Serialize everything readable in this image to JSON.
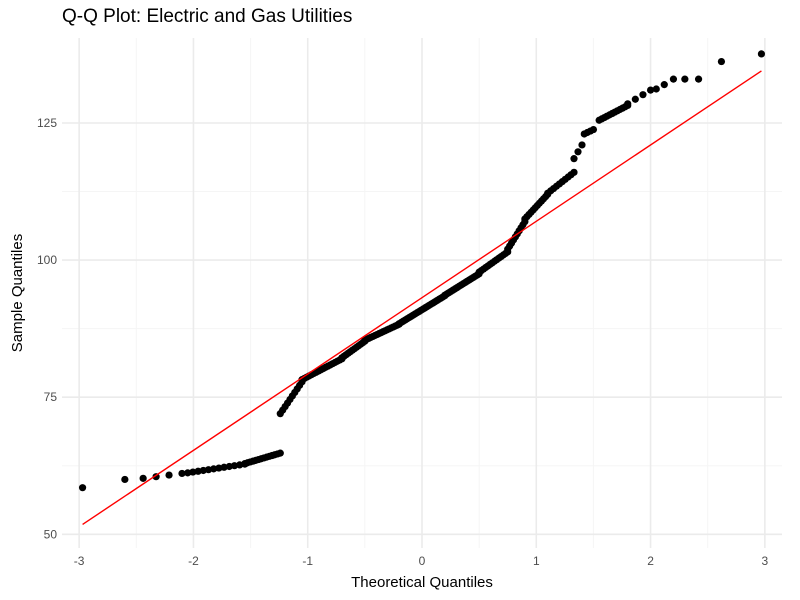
{
  "chart_data": {
    "type": "scatter",
    "title": "Q-Q Plot: Electric and Gas Utilities",
    "xlabel": "Theoretical Quantiles",
    "ylabel": "Sample Quantiles",
    "xlim": [
      -3.15,
      3.15
    ],
    "ylim": [
      47.5,
      140.5
    ],
    "x_ticks": [
      -3,
      -2,
      -1,
      0,
      1,
      2,
      3
    ],
    "y_ticks": [
      50,
      75,
      100,
      125
    ],
    "grid": true,
    "colors": {
      "points": "#000000",
      "reference_line": "#ff0000",
      "grid_major": "#ebebeb",
      "grid_minor": "#f5f5f5"
    },
    "reference_line": {
      "x": [
        -2.97,
        2.97
      ],
      "y": [
        51.8,
        134.5
      ]
    },
    "segments": [
      {
        "x0": -2.97,
        "x1": -2.6,
        "y0": 58.5,
        "y1": 60.0,
        "n": 2
      },
      {
        "x0": -2.44,
        "x1": -2.1,
        "y0": 60.2,
        "y1": 61.1,
        "n": 4
      },
      {
        "x0": -2.05,
        "x1": -1.55,
        "y0": 61.2,
        "y1": 62.8,
        "n": 12
      },
      {
        "x0": -1.55,
        "x1": -1.24,
        "y0": 62.9,
        "y1": 64.8,
        "n": 14
      },
      {
        "x0": -1.24,
        "x1": -1.05,
        "y0": 72.0,
        "y1": 77.8,
        "n": 10
      },
      {
        "x0": -1.05,
        "x1": -0.7,
        "y0": 78.2,
        "y1": 82.0,
        "n": 18
      },
      {
        "x0": -0.7,
        "x1": -0.5,
        "y0": 82.2,
        "y1": 85.2,
        "n": 12
      },
      {
        "x0": -0.5,
        "x1": -0.2,
        "y0": 85.4,
        "y1": 88.3,
        "n": 18
      },
      {
        "x0": -0.2,
        "x1": 0.2,
        "y0": 88.4,
        "y1": 93.5,
        "n": 24
      },
      {
        "x0": 0.2,
        "x1": 0.5,
        "y0": 93.6,
        "y1": 97.5,
        "n": 18
      },
      {
        "x0": 0.5,
        "x1": 0.75,
        "y0": 97.8,
        "y1": 101.5,
        "n": 14
      },
      {
        "x0": 0.75,
        "x1": 0.9,
        "y0": 102.0,
        "y1": 107.0,
        "n": 10
      },
      {
        "x0": 0.9,
        "x1": 1.1,
        "y0": 107.5,
        "y1": 112.0,
        "n": 12
      },
      {
        "x0": 1.1,
        "x1": 1.33,
        "y0": 112.2,
        "y1": 116.0,
        "n": 10
      },
      {
        "x0": 1.33,
        "x1": 1.4,
        "y0": 118.5,
        "y1": 121.0,
        "n": 3
      },
      {
        "x0": 1.42,
        "x1": 1.5,
        "y0": 123.0,
        "y1": 123.8,
        "n": 4
      },
      {
        "x0": 1.55,
        "x1": 1.8,
        "y0": 125.5,
        "y1": 128.2,
        "n": 12
      },
      {
        "x0": 1.8,
        "x1": 2.0,
        "y0": 128.5,
        "y1": 131.0,
        "n": 4
      }
    ],
    "points": [
      {
        "x": 2.05,
        "y": 131.2
      },
      {
        "x": 2.12,
        "y": 132.0
      },
      {
        "x": 2.2,
        "y": 133.0
      },
      {
        "x": 2.3,
        "y": 133.0
      },
      {
        "x": 2.42,
        "y": 133.0
      },
      {
        "x": 2.62,
        "y": 136.2
      },
      {
        "x": 2.97,
        "y": 137.6
      }
    ]
  }
}
